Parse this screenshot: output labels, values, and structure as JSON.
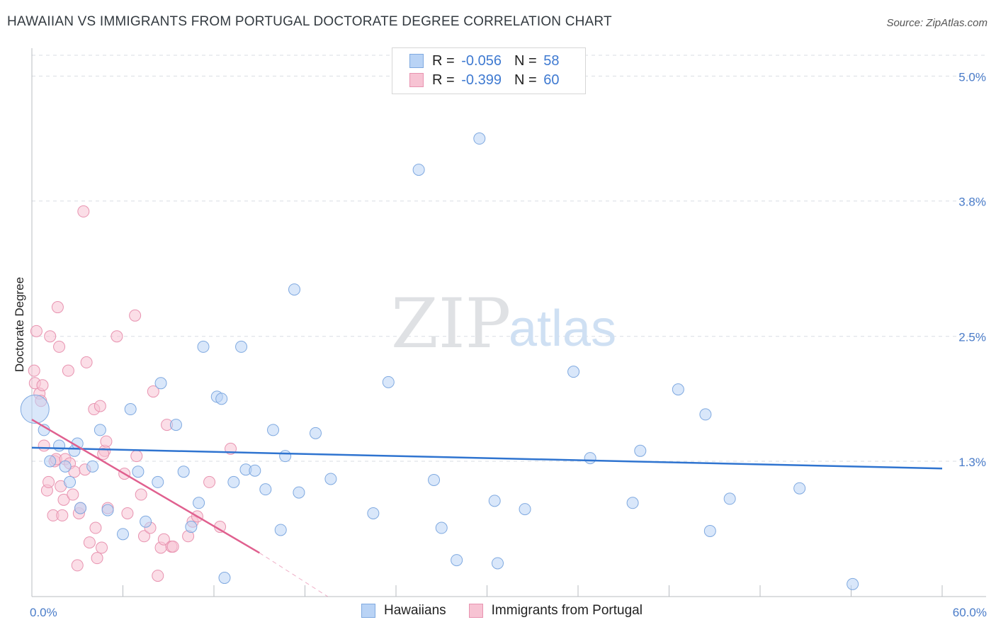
{
  "title": "HAWAIIAN VS IMMIGRANTS FROM PORTUGAL DOCTORATE DEGREE CORRELATION CHART",
  "source": "Source: ZipAtlas.com",
  "watermark": {
    "zip": "ZIP",
    "atlas": "atlas"
  },
  "colors": {
    "blue_fill": "#b9d3f5",
    "blue_stroke": "#7fa9e0",
    "blue_line": "#2f74d0",
    "pink_fill": "#f7c3d3",
    "pink_stroke": "#e893b0",
    "pink_line": "#e0608f",
    "grid": "#d9dde3",
    "tick_label": "#4a7cc9"
  },
  "legend_top": [
    {
      "r_label": "R = ",
      "r_value": "-0.056",
      "n_label": "N = ",
      "n_value": "58"
    },
    {
      "r_label": "R = ",
      "r_value": "-0.399",
      "n_label": "N = ",
      "n_value": "60"
    }
  ],
  "legend_bottom": [
    "Hawaiians",
    "Immigrants from Portugal"
  ],
  "chart_data": {
    "type": "scatter",
    "title": "HAWAIIAN VS IMMIGRANTS FROM PORTUGAL DOCTORATE DEGREE CORRELATION CHART",
    "xlabel": "",
    "ylabel": "Doctorate Degree",
    "xlim": [
      0,
      60
    ],
    "ylim": [
      0,
      5.2
    ],
    "x_tick_labels": [
      "0.0%",
      "60.0%"
    ],
    "y_ticks": [
      {
        "value": 1.3,
        "label": "1.3%"
      },
      {
        "value": 2.5,
        "label": "2.5%"
      },
      {
        "value": 3.8,
        "label": "3.8%"
      },
      {
        "value": 5.0,
        "label": "5.0%"
      }
    ],
    "series": [
      {
        "name": "Hawaiians",
        "r": -0.056,
        "n": 58,
        "trend": {
          "x0": 0,
          "y0": 1.43,
          "x1": 60,
          "y1": 1.23,
          "dashed_to": null
        },
        "points": [
          [
            0.2,
            1.8
          ],
          [
            0.8,
            1.6
          ],
          [
            1.2,
            1.3
          ],
          [
            1.8,
            1.45
          ],
          [
            2.2,
            1.25
          ],
          [
            2.5,
            1.1
          ],
          [
            2.8,
            1.4
          ],
          [
            3.0,
            1.47
          ],
          [
            3.2,
            0.85
          ],
          [
            4.0,
            1.25
          ],
          [
            4.5,
            1.6
          ],
          [
            5.0,
            0.83
          ],
          [
            6.0,
            0.6
          ],
          [
            6.5,
            1.8
          ],
          [
            7.0,
            1.2
          ],
          [
            7.5,
            0.72
          ],
          [
            8.3,
            1.1
          ],
          [
            8.5,
            2.05
          ],
          [
            9.5,
            1.65
          ],
          [
            10.0,
            1.2
          ],
          [
            10.5,
            0.67
          ],
          [
            11.0,
            0.9
          ],
          [
            11.3,
            2.4
          ],
          [
            12.2,
            1.92
          ],
          [
            12.5,
            1.9
          ],
          [
            12.7,
            0.18
          ],
          [
            13.3,
            1.1
          ],
          [
            13.8,
            2.4
          ],
          [
            14.1,
            1.22
          ],
          [
            14.7,
            1.21
          ],
          [
            15.4,
            1.03
          ],
          [
            15.9,
            1.6
          ],
          [
            16.4,
            0.64
          ],
          [
            16.7,
            1.35
          ],
          [
            17.3,
            2.95
          ],
          [
            17.6,
            1.0
          ],
          [
            18.7,
            1.57
          ],
          [
            19.7,
            1.13
          ],
          [
            22.5,
            0.8
          ],
          [
            23.5,
            2.06
          ],
          [
            25.5,
            4.1
          ],
          [
            26.5,
            1.12
          ],
          [
            27.0,
            0.66
          ],
          [
            28.0,
            0.35
          ],
          [
            29.5,
            4.4
          ],
          [
            30.5,
            0.92
          ],
          [
            30.7,
            0.32
          ],
          [
            32.5,
            0.84
          ],
          [
            35.7,
            2.16
          ],
          [
            36.8,
            1.33
          ],
          [
            39.6,
            0.9
          ],
          [
            40.1,
            1.4
          ],
          [
            42.6,
            1.99
          ],
          [
            44.4,
            1.75
          ],
          [
            44.7,
            0.63
          ],
          [
            46.0,
            0.94
          ],
          [
            50.6,
            1.04
          ],
          [
            54.1,
            0.12
          ]
        ]
      },
      {
        "name": "Immigrants from Portugal",
        "r": -0.399,
        "n": 60,
        "trend": {
          "x0": 0,
          "y0": 1.7,
          "x1": 15.0,
          "y1": 0.42,
          "dashed_to": [
            19.5,
            0.0
          ]
        },
        "points": [
          [
            0.15,
            2.17
          ],
          [
            0.2,
            2.05
          ],
          [
            0.3,
            2.55
          ],
          [
            0.5,
            1.95
          ],
          [
            0.6,
            1.88
          ],
          [
            0.7,
            2.03
          ],
          [
            0.8,
            1.45
          ],
          [
            1.0,
            1.02
          ],
          [
            1.1,
            1.1
          ],
          [
            1.2,
            2.5
          ],
          [
            1.4,
            0.78
          ],
          [
            1.5,
            1.3
          ],
          [
            1.6,
            1.32
          ],
          [
            1.7,
            2.78
          ],
          [
            1.8,
            2.4
          ],
          [
            2.0,
            0.78
          ],
          [
            2.1,
            0.93
          ],
          [
            2.2,
            1.32
          ],
          [
            2.4,
            2.17
          ],
          [
            2.5,
            1.28
          ],
          [
            2.7,
            0.98
          ],
          [
            2.8,
            1.2
          ],
          [
            3.0,
            0.3
          ],
          [
            3.1,
            0.8
          ],
          [
            3.2,
            0.85
          ],
          [
            3.4,
            3.7
          ],
          [
            3.5,
            1.22
          ],
          [
            3.6,
            2.25
          ],
          [
            3.8,
            0.52
          ],
          [
            4.1,
            1.8
          ],
          [
            4.2,
            0.66
          ],
          [
            4.3,
            0.37
          ],
          [
            4.5,
            1.83
          ],
          [
            4.6,
            0.47
          ],
          [
            4.8,
            1.4
          ],
          [
            4.9,
            1.49
          ],
          [
            5.0,
            0.85
          ],
          [
            5.6,
            2.5
          ],
          [
            6.1,
            1.18
          ],
          [
            6.3,
            0.8
          ],
          [
            6.8,
            2.7
          ],
          [
            6.9,
            1.35
          ],
          [
            7.2,
            0.98
          ],
          [
            7.4,
            0.58
          ],
          [
            7.8,
            0.66
          ],
          [
            8.0,
            1.97
          ],
          [
            8.3,
            0.2
          ],
          [
            8.5,
            0.47
          ],
          [
            8.7,
            0.55
          ],
          [
            8.9,
            1.65
          ],
          [
            9.2,
            0.48
          ],
          [
            9.3,
            0.48
          ],
          [
            10.3,
            0.58
          ],
          [
            10.6,
            0.72
          ],
          [
            10.9,
            0.77
          ],
          [
            11.7,
            1.1
          ],
          [
            12.4,
            0.67
          ],
          [
            13.1,
            1.42
          ],
          [
            4.7,
            1.37
          ],
          [
            1.9,
            1.06
          ]
        ]
      }
    ]
  }
}
